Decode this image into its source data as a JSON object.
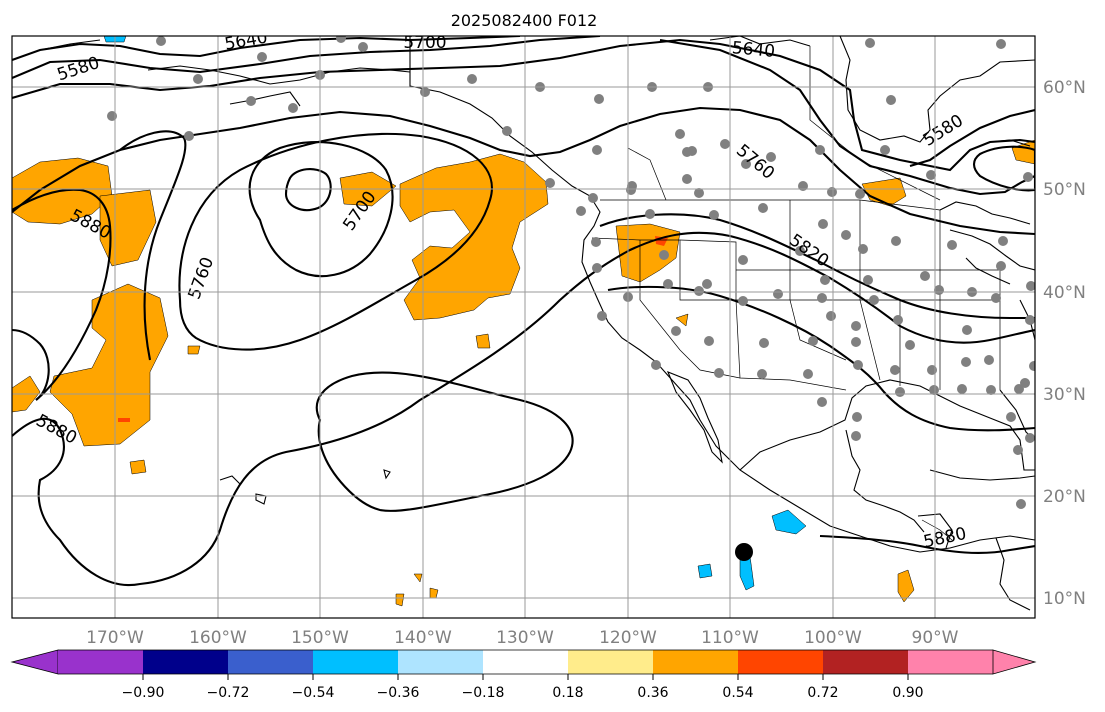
{
  "title": "2025082400 F012",
  "map": {
    "longitude_ticks": [
      "170°W",
      "160°W",
      "150°W",
      "140°W",
      "130°W",
      "120°W",
      "110°W",
      "100°W",
      "90°W"
    ],
    "latitude_ticks": [
      "60°N",
      "50°N",
      "40°N",
      "30°N",
      "20°N",
      "10°N"
    ],
    "contour_labels": [
      "5580",
      "5640",
      "5700",
      "5640",
      "5580",
      "5880",
      "5760",
      "5700",
      "5760",
      "5820",
      "5880",
      "5880"
    ],
    "grid": true,
    "marker": "storm center",
    "colors": {
      "station": "#808080",
      "contour": "#000000",
      "gridline": "#9a9a9a"
    }
  },
  "colorbar": {
    "labels": [
      "−0.90",
      "−0.72",
      "−0.54",
      "−0.36",
      "−0.18",
      "0.18",
      "0.36",
      "0.54",
      "0.72",
      "0.90"
    ],
    "colors": [
      "#9932CC",
      "#00008B",
      "#3A5FCD",
      "#00BFFF",
      "#AEE4FF",
      "#FFFFFF",
      "#FFEC8B",
      "#FFA500",
      "#FF4500",
      "#B22222",
      "#FF82AB",
      "#FF82AB"
    ]
  }
}
